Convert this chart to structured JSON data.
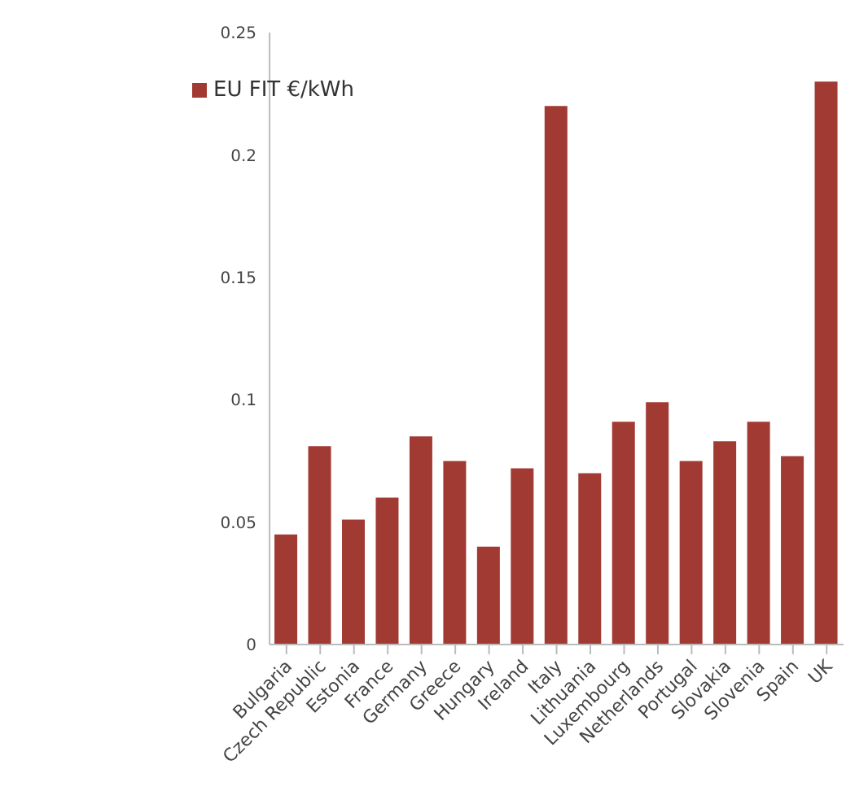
{
  "chart_data": {
    "type": "bar",
    "categories": [
      "Bulgaria",
      "Czech Republic",
      "Estonia",
      "France",
      "Germany",
      "Greece",
      "Hungary",
      "Ireland",
      "Italy",
      "Lithuania",
      "Luxembourg",
      "Netherlands",
      "Portugal",
      "Slovakia",
      "Slovenia",
      "Spain",
      "UK"
    ],
    "series": [
      {
        "name": "EU FIT €/kWh",
        "color": "#a23a34",
        "values": [
          0.045,
          0.081,
          0.051,
          0.06,
          0.085,
          0.075,
          0.04,
          0.072,
          0.22,
          0.07,
          0.091,
          0.099,
          0.075,
          0.083,
          0.091,
          0.077,
          0.23
        ]
      }
    ],
    "ylim": [
      0,
      0.25
    ],
    "yticks": [
      0,
      0.05,
      0.1,
      0.15,
      0.2,
      0.25
    ],
    "grid": false,
    "legend": "top left"
  }
}
